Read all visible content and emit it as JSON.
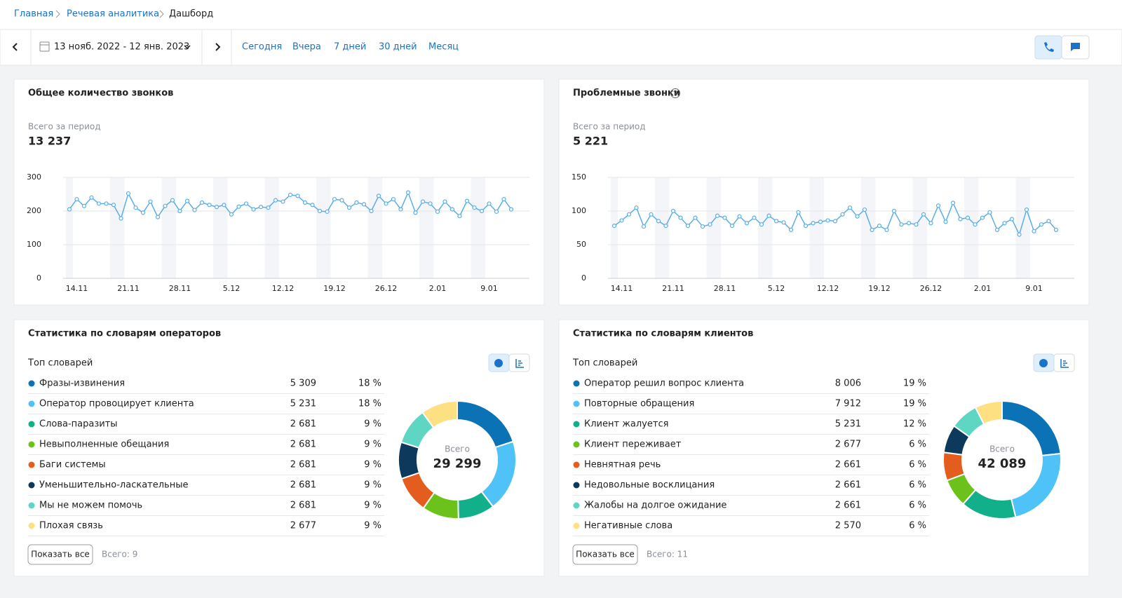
{
  "breadcrumbs": [
    "Главная",
    "Речевая аналитика",
    "Дашборд"
  ],
  "toolbar": {
    "date_range": "13 нояб. 2022 - 12 янв. 2023",
    "periods": [
      "Сегодня",
      "Вчера",
      "7 дней",
      "30 дней",
      "Месяц"
    ]
  },
  "chart_data": [
    {
      "type": "line",
      "title": "Общее количество звонков",
      "subtitle": "Всего за период",
      "total": "13 237",
      "categories": [
        null,
        "14.11",
        null,
        null,
        null,
        null,
        null,
        null,
        "21.11",
        null,
        null,
        null,
        null,
        null,
        null,
        "28.11",
        null,
        null,
        null,
        null,
        null,
        null,
        "5.12",
        null,
        null,
        null,
        null,
        null,
        null,
        "12.12",
        null,
        null,
        null,
        null,
        null,
        null,
        "19.12",
        null,
        null,
        null,
        null,
        null,
        null,
        "26.12",
        null,
        null,
        null,
        null,
        null,
        null,
        "2.01",
        null,
        null,
        null,
        null,
        null,
        null,
        "9.01",
        null,
        null,
        null
      ],
      "values": [
        205,
        235,
        215,
        240,
        222,
        222,
        218,
        178,
        252,
        210,
        195,
        228,
        182,
        215,
        232,
        200,
        230,
        203,
        225,
        218,
        212,
        218,
        190,
        213,
        222,
        205,
        212,
        210,
        232,
        228,
        248,
        245,
        225,
        218,
        200,
        198,
        235,
        232,
        210,
        225,
        220,
        200,
        245,
        222,
        235,
        205,
        255,
        195,
        228,
        222,
        198,
        228,
        205,
        185,
        230,
        210,
        200,
        222,
        198,
        235,
        205
      ],
      "color": "#5aaee8",
      "ylim": [
        0,
        300
      ],
      "yticks": [
        0,
        100,
        200,
        300
      ],
      "grid": true
    },
    {
      "type": "line",
      "title": "Проблемные звонки",
      "subtitle": "Всего за период",
      "total": "5 221",
      "categories": [
        null,
        "14.11",
        null,
        null,
        null,
        null,
        null,
        null,
        "21.11",
        null,
        null,
        null,
        null,
        null,
        null,
        "28.11",
        null,
        null,
        null,
        null,
        null,
        null,
        "5.12",
        null,
        null,
        null,
        null,
        null,
        null,
        "12.12",
        null,
        null,
        null,
        null,
        null,
        null,
        "19.12",
        null,
        null,
        null,
        null,
        null,
        null,
        "26.12",
        null,
        null,
        null,
        null,
        null,
        null,
        "2.01",
        null,
        null,
        null,
        null,
        null,
        null,
        "9.01",
        null,
        null,
        null
      ],
      "values": [
        78,
        86,
        95,
        105,
        77,
        95,
        85,
        78,
        100,
        90,
        78,
        90,
        77,
        80,
        93,
        90,
        78,
        92,
        82,
        90,
        80,
        93,
        85,
        83,
        72,
        98,
        78,
        82,
        84,
        86,
        85,
        95,
        105,
        92,
        102,
        72,
        78,
        72,
        100,
        80,
        82,
        80,
        95,
        82,
        108,
        84,
        112,
        88,
        90,
        80,
        90,
        98,
        72,
        82,
        88,
        65,
        102,
        70,
        80,
        85,
        72
      ],
      "color": "#5aaee8",
      "ylim": [
        0,
        150
      ],
      "yticks": [
        0,
        50,
        100,
        150
      ],
      "grid": true
    },
    {
      "type": "pie",
      "title": "Статистика по словарям операторов",
      "subtitle": "Топ словарей",
      "categories": [
        "Фразы-извинения",
        "Оператор провоцирует клиента",
        "Слова-паразиты",
        "Невыполненные обещания",
        "Баги системы",
        "Уменьшительно-ласкательные",
        "Мы не можем помочь",
        "Плохая связь"
      ],
      "values": [
        5309,
        5231,
        2681,
        2681,
        2681,
        2681,
        2681,
        2677
      ],
      "value_labels": [
        "5 309",
        "5 231",
        "2 681",
        "2 681",
        "2 681",
        "2 681",
        "2 681",
        "2 677"
      ],
      "percent_labels": [
        "18 %",
        "18 %",
        "9 %",
        "9 %",
        "9 %",
        "9 %",
        "9 %",
        "9 %"
      ],
      "colors": [
        "#0b72b5",
        "#4fc3f7",
        "#12b08a",
        "#6cc21b",
        "#e35d1f",
        "#0d3a5c",
        "#5fd6c3",
        "#fce082"
      ],
      "center_label": "Всего",
      "total": "29 299",
      "button": "Показать все",
      "count_label": "Всего: 9"
    },
    {
      "type": "pie",
      "title": "Статистика по словарям клиентов",
      "subtitle": "Топ словарей",
      "categories": [
        "Оператор решил вопрос клиента",
        "Повторные обращения",
        "Клиент жалуется",
        "Клиент переживает",
        "Невнятная речь",
        "Недовольные восклицания",
        "Жалобы на долгое ожидание",
        "Негативные слова"
      ],
      "values": [
        8006,
        7912,
        5231,
        2677,
        2661,
        2661,
        2661,
        2570
      ],
      "value_labels": [
        "8 006",
        "7 912",
        "5 231",
        "2 677",
        "2 661",
        "2 661",
        "2 661",
        "2 570"
      ],
      "percent_labels": [
        "19 %",
        "19 %",
        "12 %",
        "6 %",
        "6 %",
        "6 %",
        "6 %",
        "6 %"
      ],
      "colors": [
        "#0b72b5",
        "#4fc3f7",
        "#12b08a",
        "#6cc21b",
        "#e35d1f",
        "#0d3a5c",
        "#5fd6c3",
        "#fce082"
      ],
      "center_label": "Всего",
      "total": "42 089",
      "button": "Показать все",
      "count_label": "Всего: 11"
    }
  ]
}
